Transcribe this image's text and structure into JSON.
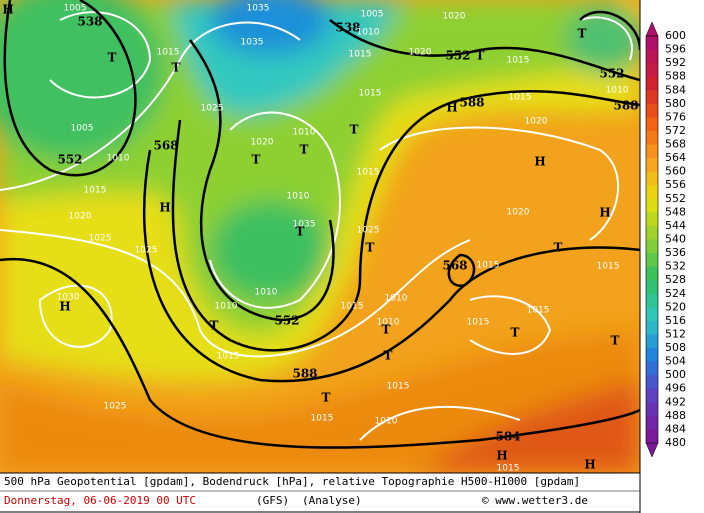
{
  "map_labels": [
    "H",
    "1005",
    "538",
    "T",
    "1015",
    "T",
    "1035",
    "1035",
    "1025",
    "538",
    "1005",
    "1010",
    "1015",
    "1020",
    "1020",
    "552",
    "T",
    "1015",
    "T",
    "552",
    "1010",
    "588",
    "1015",
    "1020",
    "588",
    "H",
    "1015",
    "T",
    "1010",
    "T",
    "1020",
    "T",
    "1005",
    "552",
    "1010",
    "568",
    "1015",
    "H",
    "1020",
    "1025",
    "1025",
    "1030",
    "H",
    "1010",
    "1015",
    "1035",
    "T",
    "1025",
    "T",
    "1020",
    "H",
    "H",
    "T",
    "568",
    "1015",
    "1015",
    "1010",
    "1010",
    "552",
    "1015",
    "1010",
    "1010",
    "T",
    "1015",
    "1015",
    "T",
    "T",
    "T",
    "1015",
    "T",
    "588",
    "1015",
    "T",
    "1015",
    "1025",
    "1010",
    "584",
    "H",
    "1015",
    "H"
  ],
  "colorbar": [
    600,
    596,
    592,
    588,
    584,
    580,
    576,
    572,
    568,
    564,
    560,
    556,
    552,
    548,
    544,
    540,
    536,
    532,
    528,
    524,
    520,
    516,
    512,
    508,
    504,
    500,
    496,
    492,
    488,
    484,
    480
  ],
  "footer": {
    "description": "500 hPa Geopotential [gpdam], Bodendruck [hPa], relative Topographie H500-H1000 [gpdam]",
    "date": "Donnerstag, 06-06-2019  00 UTC",
    "model": "(GFS)",
    "run": "(Analyse)",
    "credit": "© www.wetter3.de"
  }
}
